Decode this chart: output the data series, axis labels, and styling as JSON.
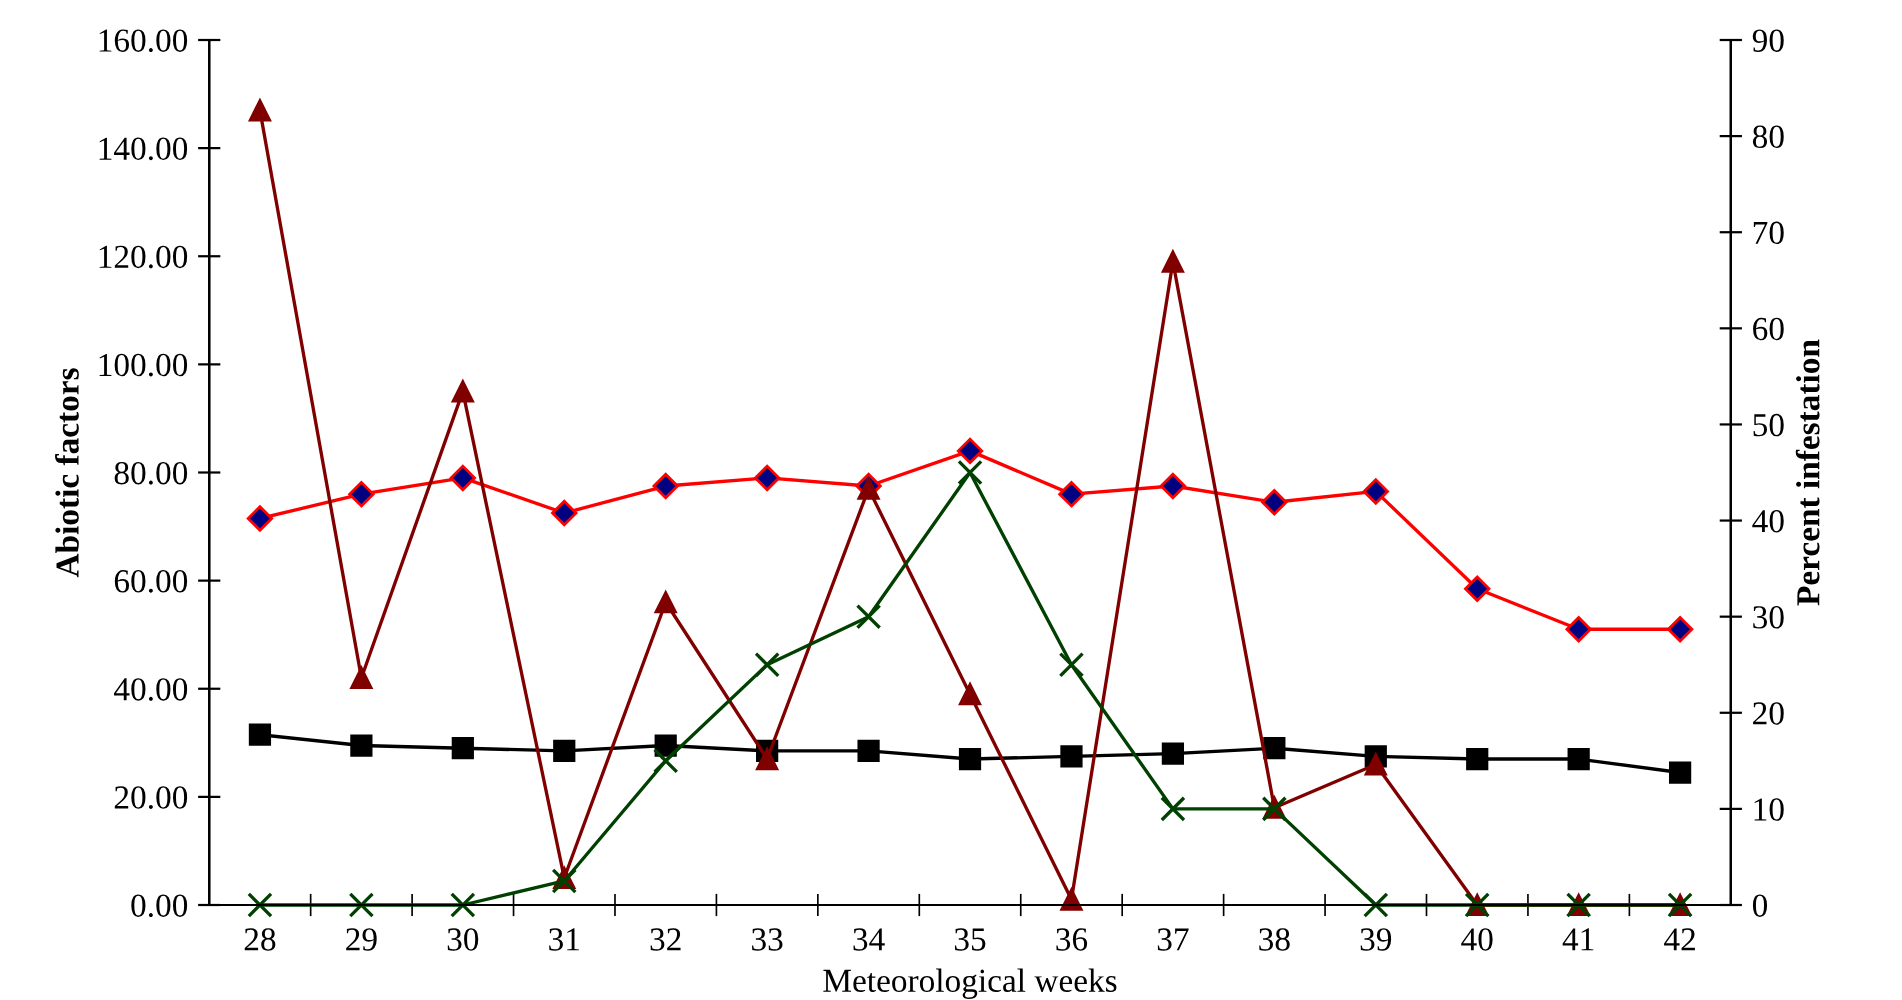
{
  "chart_data": {
    "type": "line",
    "xlabel": "Meteorological weeks",
    "ylabel": "Abiotic factors",
    "y2label": "Percent infestation",
    "categories": [
      "28",
      "29",
      "30",
      "31",
      "32",
      "33",
      "34",
      "35",
      "36",
      "37",
      "38",
      "39",
      "40",
      "41",
      "42"
    ],
    "ylim": [
      0,
      160
    ],
    "yticks": [
      {
        "value": 0,
        "label": "0.00"
      },
      {
        "value": 20,
        "label": "20.00"
      },
      {
        "value": 40,
        "label": "40.00"
      },
      {
        "value": 60,
        "label": "60.00"
      },
      {
        "value": 80,
        "label": "80.00"
      },
      {
        "value": 100,
        "label": "100.00"
      },
      {
        "value": 120,
        "label": "120.00"
      },
      {
        "value": 140,
        "label": "140.00"
      },
      {
        "value": 160,
        "label": "160.00"
      }
    ],
    "y2lim": [
      0,
      90
    ],
    "y2ticks": [
      0,
      10,
      20,
      30,
      40,
      50,
      60,
      70,
      80,
      90
    ],
    "grid": false,
    "line_style": "solid",
    "series": [
      {
        "color": "#ff0000",
        "marker": "diamond",
        "values": [
          71.5,
          76,
          79,
          72.5,
          77.5,
          79,
          77.5,
          84,
          76,
          77.5,
          74.5,
          76.5,
          58.5,
          51,
          51
        ]
      },
      {
        "color": "#000000",
        "marker": "square",
        "values": [
          31.5,
          29.5,
          29,
          28.5,
          29.5,
          28.5,
          28.5,
          27,
          27.5,
          28,
          29,
          27.5,
          27,
          27,
          24.5
        ]
      },
      {
        "color": "#800000",
        "marker": "triangle",
        "values": [
          147,
          42,
          95,
          5,
          56,
          27,
          77,
          39,
          1,
          119,
          18,
          26,
          0,
          0,
          0
        ]
      },
      {
        "color": "#004000",
        "marker": "cross",
        "axis": "y2",
        "values": [
          0,
          0,
          0,
          2.5,
          15,
          25,
          30,
          45,
          25,
          10,
          10,
          0,
          0,
          0,
          0
        ]
      }
    ]
  }
}
